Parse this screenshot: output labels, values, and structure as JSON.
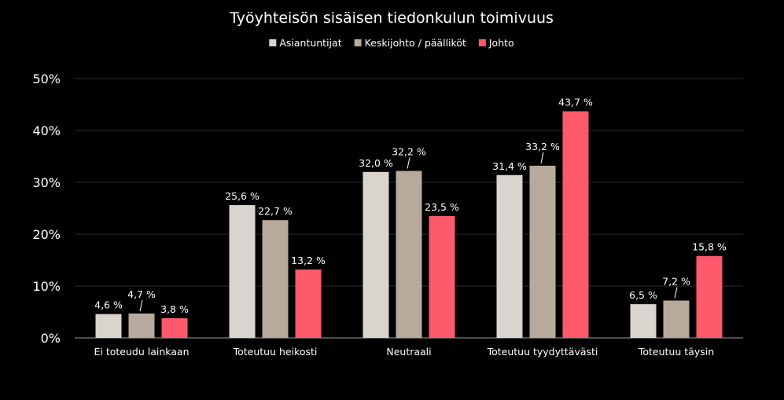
{
  "chart_data": {
    "type": "bar",
    "title": "Työyhteisön sisäisen tiedonkulun toimivuus",
    "categories": [
      "Ei toteudu lainkaan",
      "Toteutuu heikosti",
      "Neutraali",
      "Toteutuu tyydyttävästi",
      "Toteutuu täysin"
    ],
    "series": [
      {
        "name": "Asiantuntijat",
        "color": "#d9d4ce",
        "values": [
          4.6,
          25.6,
          32.0,
          31.4,
          6.5
        ],
        "labels": [
          "4,6 %",
          "25,6 %",
          "32,0 %",
          "31,4 %",
          "6,5 %"
        ]
      },
      {
        "name": "Keskijohto / päälliköt",
        "color": "#b7aa9c",
        "values": [
          4.7,
          22.7,
          32.2,
          33.2,
          7.2
        ],
        "labels": [
          "4,7 %",
          "22,7 %",
          "32,2 %",
          "33,2 %",
          "7,2 %"
        ]
      },
      {
        "name": "Johto",
        "color": "#ff5a6c",
        "values": [
          3.8,
          13.2,
          23.5,
          43.7,
          15.8
        ],
        "labels": [
          "3,8 %",
          "13,2 %",
          "23,5 %",
          "43,7 %",
          "15,8 %"
        ]
      }
    ],
    "ylim": [
      0,
      50
    ],
    "yticks": [
      0,
      10,
      20,
      30,
      40,
      50
    ],
    "ytick_labels": [
      "0%",
      "10%",
      "20%",
      "30%",
      "40%",
      "50%"
    ],
    "grid": true,
    "legend_position": "top-center",
    "xlabel": "",
    "ylabel": ""
  }
}
